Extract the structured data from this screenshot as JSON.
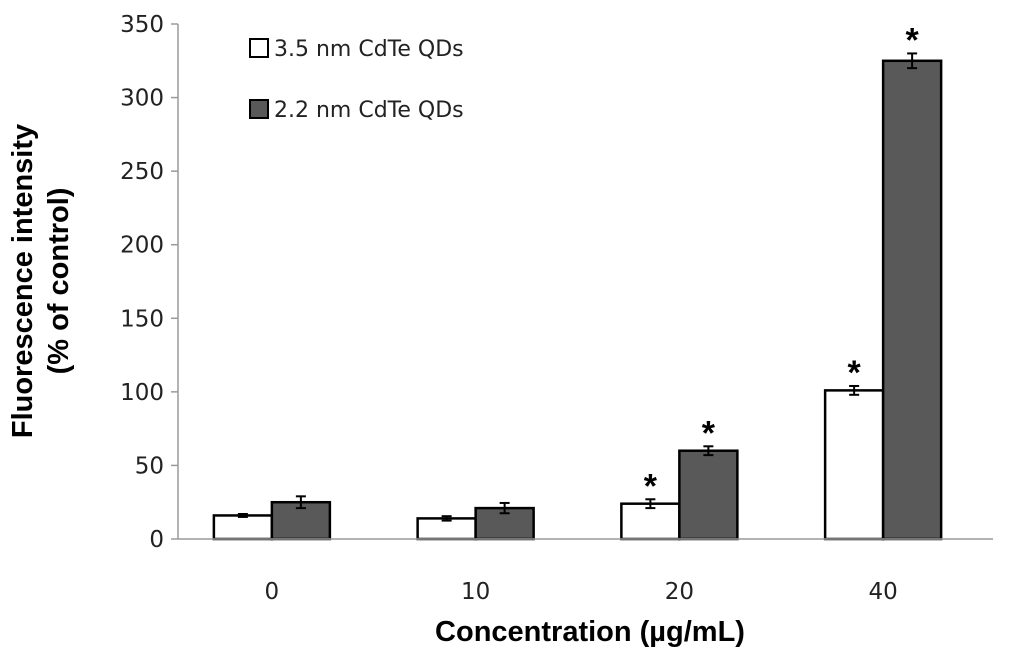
{
  "chart_data": {
    "type": "bar",
    "title": "",
    "xlabel": "Concentration (µg/mL)",
    "ylabel_line1": "Fluorescence intensity",
    "ylabel_line2": "(% of control)",
    "ylim": [
      0,
      350
    ],
    "yticks": [
      0,
      50,
      100,
      150,
      200,
      250,
      300,
      350
    ],
    "ytick_labels": [
      "0",
      "50",
      "100",
      "150",
      "200",
      "250",
      "300",
      "350"
    ],
    "categories": [
      "0",
      "10",
      "20",
      "40"
    ],
    "legend_position": "top-left",
    "grid": false,
    "significance_marker": "*",
    "series": [
      {
        "name": "3.5 nm CdTe QDs",
        "color": "#ffffff",
        "values": [
          16,
          14,
          24,
          101
        ],
        "errors": [
          1,
          1.5,
          3,
          3
        ],
        "significant": [
          false,
          false,
          true,
          true
        ]
      },
      {
        "name": "2.2 nm CdTe QDs",
        "color": "#595959",
        "values": [
          25,
          21,
          60,
          325
        ],
        "errors": [
          4,
          3.5,
          3,
          5
        ],
        "significant": [
          false,
          false,
          true,
          true
        ]
      }
    ]
  }
}
